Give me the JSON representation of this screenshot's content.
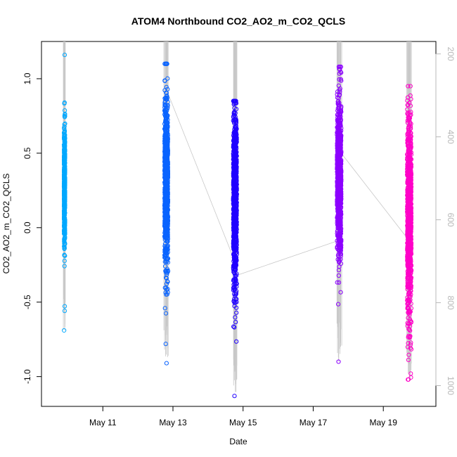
{
  "chart_data": {
    "type": "scatter",
    "title": "ATOM4 Northbound CO2_AO2_m_CO2_QCLS",
    "xlabel": "Date",
    "ylabel": "CO2_AO2_m_CO2_QCLS",
    "x_type": "date",
    "xlim": [
      "2016-05-09T06:00",
      "2016-05-20T12:00"
    ],
    "ylim": [
      -1.2,
      1.25
    ],
    "y2lim": [
      1050,
      170
    ],
    "x_ticks": [
      {
        "date": "2016-05-11",
        "label": "May 11"
      },
      {
        "date": "2016-05-13",
        "label": "May 13"
      },
      {
        "date": "2016-05-15",
        "label": "May 15"
      },
      {
        "date": "2016-05-17",
        "label": "May 17"
      },
      {
        "date": "2016-05-19",
        "label": "May 19"
      }
    ],
    "y_ticks": [
      -1.0,
      -0.5,
      0.0,
      0.5,
      1.0
    ],
    "y_tick_labels": [
      "-1.0",
      "-0.5",
      "0.0",
      "0.5",
      "1.0"
    ],
    "y2_ticks": [
      200,
      400,
      600,
      800,
      1000
    ],
    "y2_tick_labels": [
      "200",
      "400",
      "600",
      "800",
      "1000"
    ],
    "grid": false,
    "series": [
      {
        "date": "2016-05-09",
        "time_start": "21:24",
        "time_end": "22:07",
        "color": "#00a8ff",
        "y_median": 0.28,
        "y_spread": 0.2,
        "y_min": -0.69,
        "y_max": 1.16,
        "n": 520
      },
      {
        "date": "2016-05-12",
        "time_start": "18:14",
        "time_end": "20:38",
        "color": "#0a64ff",
        "y_median": 0.3,
        "y_spread": 0.28,
        "y_min": -0.91,
        "y_max": 1.1,
        "n": 900
      },
      {
        "date": "2016-05-14",
        "time_start": "17:16",
        "time_end": "19:41",
        "color": "#2000ff",
        "y_median": 0.2,
        "y_spread": 0.3,
        "y_min": -1.13,
        "y_max": 0.85,
        "n": 900
      },
      {
        "date": "2016-05-17",
        "time_start": "16:19",
        "time_end": "19:12",
        "color": "#8c00ff",
        "y_median": 0.32,
        "y_spread": 0.26,
        "y_min": -0.9,
        "y_max": 1.08,
        "n": 900
      },
      {
        "date": "2016-05-19",
        "time_start": "16:19",
        "time_end": "19:12",
        "color": "#ff00c8",
        "y_median": 0.05,
        "y_spread": 0.34,
        "y_min": -1.02,
        "y_max": 0.95,
        "n": 900
      }
    ],
    "secondary_line": {
      "color": "#c8c8c8",
      "y2_values": [
        1050,
        170
      ],
      "note": "grey right-axis trace, drawn as vertical strokes within each flight and connecting segments between flights"
    }
  }
}
